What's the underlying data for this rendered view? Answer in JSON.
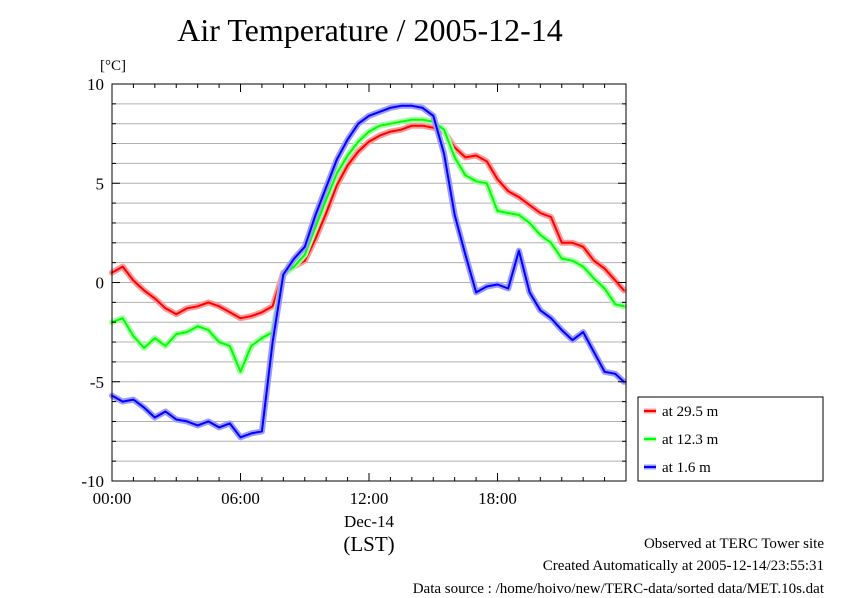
{
  "chart_data": {
    "type": "line",
    "title": "Air Temperature / 2005-12-14",
    "ylabel": "[°C]",
    "xlabel": "(LST)",
    "x_sublabel": "Dec-14",
    "xlim": [
      0,
      24
    ],
    "ylim": [
      -10,
      10
    ],
    "x_ticks": [
      {
        "value": 0,
        "label": "00:00"
      },
      {
        "value": 6,
        "label": "06:00"
      },
      {
        "value": 12,
        "label": "12:00"
      },
      {
        "value": 18,
        "label": "18:00"
      }
    ],
    "y_ticks": [
      {
        "value": 10,
        "label": "10"
      },
      {
        "value": 5,
        "label": "5"
      },
      {
        "value": 0,
        "label": "0"
      },
      {
        "value": -5,
        "label": "-5"
      },
      {
        "value": -10,
        "label": "-10"
      }
    ],
    "grid": true,
    "legend_position": "lower-right-outside",
    "x_unit": "hour",
    "series": [
      {
        "name": "at 29.5 m",
        "color": "#ff0000",
        "x": [
          0,
          0.5,
          1,
          1.5,
          2,
          2.5,
          3,
          3.5,
          4,
          4.5,
          5,
          5.5,
          6,
          6.5,
          7,
          7.5,
          8,
          8.5,
          9,
          9.5,
          10,
          10.5,
          11,
          11.5,
          12,
          12.5,
          13,
          13.5,
          14,
          14.5,
          15,
          15.5,
          16,
          16.5,
          17,
          17.5,
          18,
          18.5,
          19,
          19.5,
          20,
          20.5,
          21,
          21.5,
          22,
          22.5,
          23,
          23.5,
          23.9
        ],
        "values": [
          0.5,
          0.8,
          0.1,
          -0.4,
          -0.8,
          -1.3,
          -1.6,
          -1.3,
          -1.2,
          -1.0,
          -1.2,
          -1.5,
          -1.8,
          -1.7,
          -1.5,
          -1.2,
          0.5,
          0.8,
          1.1,
          2.2,
          3.5,
          4.9,
          5.9,
          6.6,
          7.1,
          7.4,
          7.6,
          7.7,
          7.9,
          7.9,
          7.8,
          7.6,
          6.8,
          6.3,
          6.4,
          6.1,
          5.2,
          4.6,
          4.3,
          3.9,
          3.5,
          3.3,
          2.0,
          2.0,
          1.8,
          1.1,
          0.7,
          0.1,
          -0.4
        ]
      },
      {
        "name": "at 12.3 m",
        "color": "#00ff00",
        "x": [
          0,
          0.5,
          1,
          1.5,
          2,
          2.5,
          3,
          3.5,
          4,
          4.5,
          5,
          5.5,
          6,
          6.5,
          7,
          7.5,
          8,
          8.5,
          9,
          9.5,
          10,
          10.5,
          11,
          11.5,
          12,
          12.5,
          13,
          13.5,
          14,
          14.5,
          15,
          15.5,
          16,
          16.5,
          17,
          17.5,
          18,
          18.5,
          19,
          19.5,
          20,
          20.5,
          21,
          21.5,
          22,
          22.5,
          23,
          23.5,
          23.9
        ],
        "values": [
          -2.0,
          -1.8,
          -2.7,
          -3.3,
          -2.8,
          -3.2,
          -2.6,
          -2.5,
          -2.2,
          -2.4,
          -3.0,
          -3.2,
          -4.5,
          -3.2,
          -2.8,
          -2.5,
          0.4,
          0.8,
          1.4,
          2.8,
          4.2,
          5.5,
          6.4,
          7.1,
          7.6,
          7.9,
          8.0,
          8.1,
          8.2,
          8.2,
          8.1,
          7.7,
          6.3,
          5.4,
          5.1,
          5.0,
          3.6,
          3.5,
          3.4,
          3.0,
          2.4,
          2.0,
          1.2,
          1.1,
          0.8,
          0.2,
          -0.3,
          -1.1,
          -1.2
        ]
      },
      {
        "name": "at 1.6 m",
        "color": "#0000ff",
        "x": [
          0,
          0.5,
          1,
          1.5,
          2,
          2.5,
          3,
          3.5,
          4,
          4.5,
          5,
          5.5,
          6,
          6.5,
          7,
          7.5,
          8,
          8.5,
          9,
          9.5,
          10,
          10.5,
          11,
          11.5,
          12,
          12.5,
          13,
          13.5,
          14,
          14.5,
          15,
          15.5,
          16,
          16.5,
          17,
          17.5,
          18,
          18.5,
          19,
          19.5,
          20,
          20.5,
          21,
          21.5,
          22,
          22.5,
          23,
          23.5,
          23.9
        ],
        "values": [
          -5.7,
          -6.0,
          -5.9,
          -6.3,
          -6.8,
          -6.5,
          -6.9,
          -7.0,
          -7.2,
          -7.0,
          -7.3,
          -7.1,
          -7.8,
          -7.6,
          -7.5,
          -3.0,
          0.4,
          1.2,
          1.8,
          3.4,
          4.8,
          6.2,
          7.2,
          8.0,
          8.4,
          8.6,
          8.8,
          8.9,
          8.9,
          8.8,
          8.4,
          6.5,
          3.4,
          1.4,
          -0.5,
          -0.2,
          -0.1,
          -0.3,
          1.6,
          -0.5,
          -1.4,
          -1.8,
          -2.4,
          -2.9,
          -2.5,
          -3.5,
          -4.5,
          -4.6,
          -5.0
        ]
      }
    ]
  },
  "footer": {
    "observed": "Observed at TERC Tower site",
    "created": "Created Automatically at 2005-12-14/23:55:31",
    "source": "Data source : /home/hoivo/new/TERC-data/sorted data/MET.10s.dat"
  }
}
